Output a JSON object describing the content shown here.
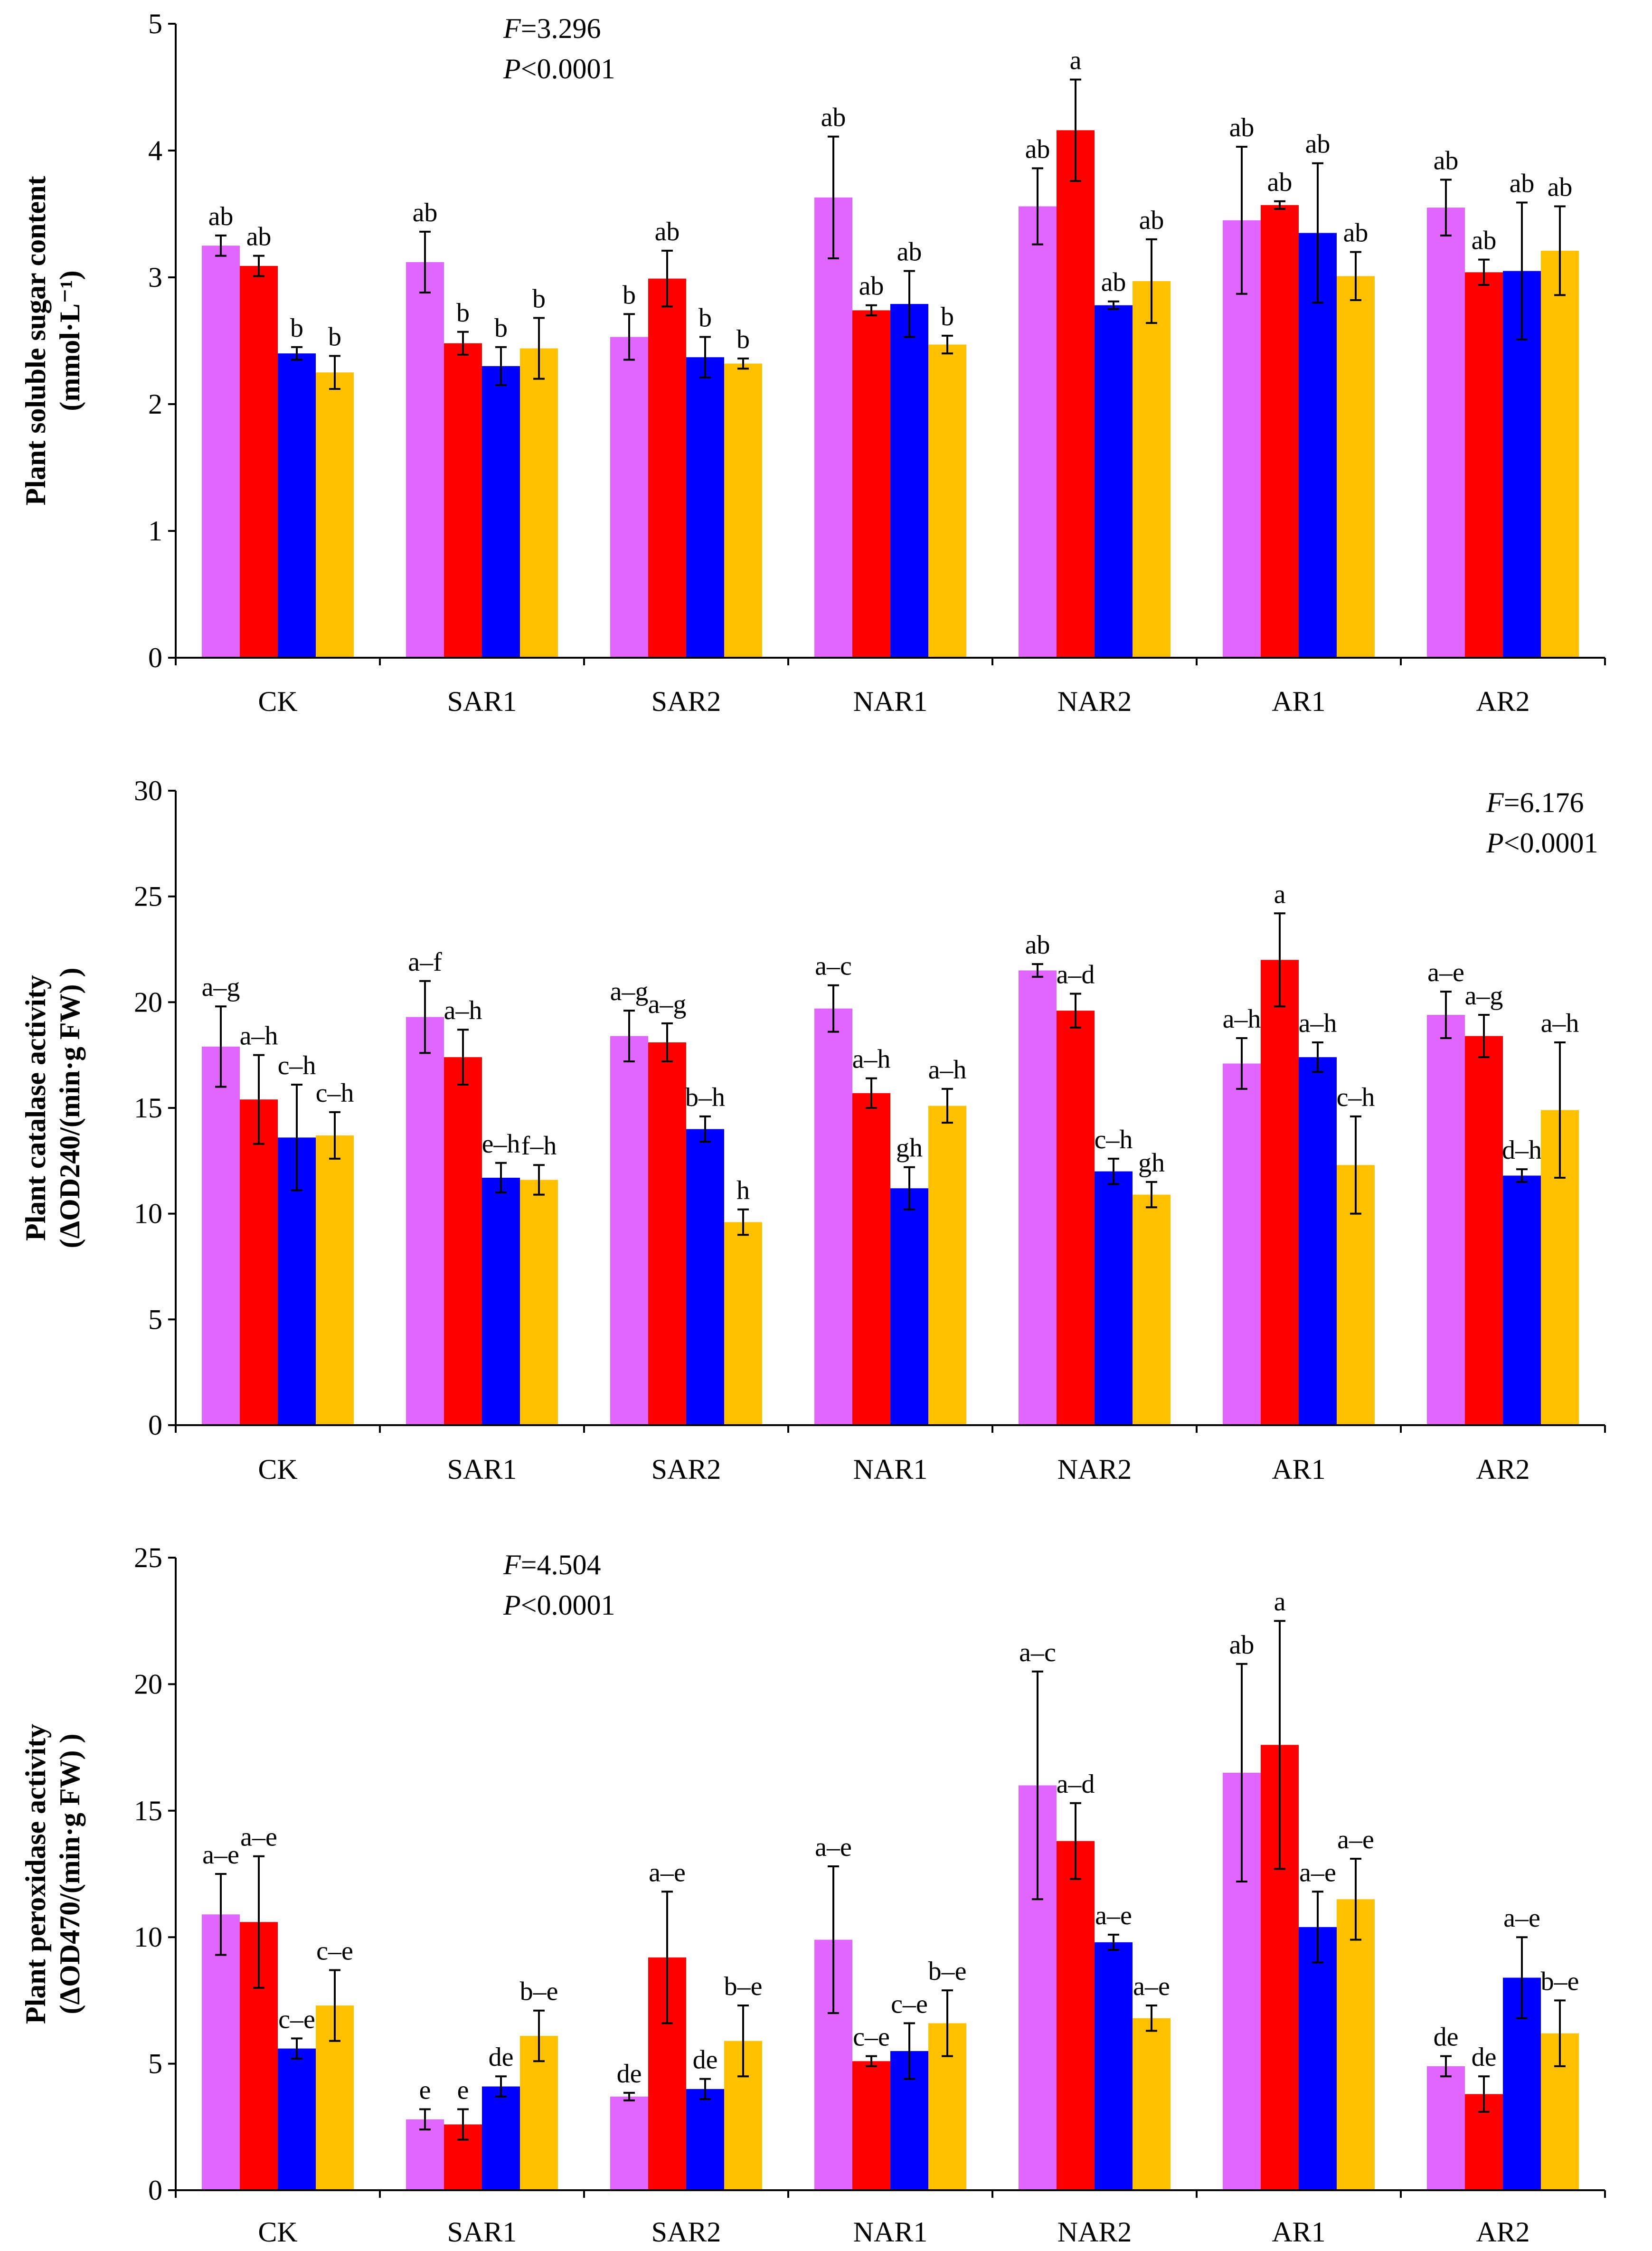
{
  "colors": [
    "#e066ff",
    "#ff0000",
    "#0000ff",
    "#ffc000"
  ],
  "chart_data": [
    {
      "type": "bar",
      "categories": [
        "CK",
        "SAR1",
        "SAR2",
        "NAR1",
        "NAR2",
        "AR1",
        "AR2"
      ],
      "ylabel": [
        "Plant soluble sugar content",
        "(mmol·L⁻¹)"
      ],
      "ylim": [
        0,
        5
      ],
      "ticks": [
        0,
        1,
        2,
        3,
        4,
        5
      ],
      "stat_f_prefix": "F",
      "stat_f_value": "=3.296",
      "stat_p_prefix": "P",
      "stat_p_value": "<0.0001",
      "series": [
        {
          "values": [
            3.25,
            3.12,
            2.53,
            3.63,
            3.56,
            3.45,
            3.55
          ],
          "errors": [
            0.08,
            0.24,
            0.18,
            0.48,
            0.3,
            0.58,
            0.22
          ],
          "labels": [
            "ab",
            "ab",
            "b",
            "ab",
            "ab",
            "ab",
            "ab"
          ]
        },
        {
          "values": [
            3.09,
            2.48,
            2.99,
            2.74,
            4.16,
            3.57,
            3.04
          ],
          "errors": [
            0.08,
            0.09,
            0.22,
            0.04,
            0.4,
            0.03,
            0.1
          ],
          "labels": [
            "ab",
            "b",
            "ab",
            "ab",
            "a",
            "ab",
            "ab"
          ]
        },
        {
          "values": [
            2.4,
            2.3,
            2.37,
            2.79,
            2.78,
            3.35,
            3.05
          ],
          "errors": [
            0.05,
            0.15,
            0.16,
            0.26,
            0.03,
            0.55,
            0.54
          ],
          "labels": [
            "b",
            "b",
            "b",
            "ab",
            "ab",
            "ab",
            "ab"
          ]
        },
        {
          "values": [
            2.25,
            2.44,
            2.32,
            2.47,
            2.97,
            3.01,
            3.21
          ],
          "errors": [
            0.13,
            0.24,
            0.04,
            0.07,
            0.33,
            0.19,
            0.35
          ],
          "labels": [
            "b",
            "b",
            "b",
            "b",
            "ab",
            "ab",
            "ab"
          ]
        }
      ]
    },
    {
      "type": "bar",
      "categories": [
        "CK",
        "SAR1",
        "SAR2",
        "NAR1",
        "NAR2",
        "AR1",
        "AR2"
      ],
      "ylabel": [
        "Plant catalase activity",
        "(ΔOD240/(min·g FW) )"
      ],
      "ylim": [
        0,
        30
      ],
      "ticks": [
        0,
        5,
        10,
        15,
        20,
        25,
        30
      ],
      "stat_f_prefix": "F",
      "stat_f_value": "=6.176",
      "stat_p_prefix": "P",
      "stat_p_value": "<0.0001",
      "series": [
        {
          "values": [
            17.9,
            19.3,
            18.4,
            19.7,
            21.5,
            17.1,
            19.4
          ],
          "errors": [
            1.9,
            1.7,
            1.2,
            1.1,
            0.3,
            1.2,
            1.1
          ],
          "labels": [
            "a–g",
            "a–f",
            "a–g",
            "a–c",
            "ab",
            "a–h",
            "a–e"
          ]
        },
        {
          "values": [
            15.4,
            17.4,
            18.1,
            15.7,
            19.6,
            22.0,
            18.4
          ],
          "errors": [
            2.1,
            1.3,
            0.9,
            0.7,
            0.8,
            2.2,
            1.0
          ],
          "labels": [
            "a–h",
            "a–h",
            "a–g",
            "a–h",
            "a–d",
            "a",
            "a–g"
          ]
        },
        {
          "values": [
            13.6,
            11.7,
            14.0,
            11.2,
            12.0,
            17.4,
            11.8
          ],
          "errors": [
            2.5,
            0.7,
            0.6,
            1.0,
            0.6,
            0.7,
            0.3
          ],
          "labels": [
            "c–h",
            "e–h",
            "b–h",
            "gh",
            "c–h",
            "a–h",
            "d–h"
          ]
        },
        {
          "values": [
            13.7,
            11.6,
            9.6,
            15.1,
            10.9,
            12.3,
            14.9
          ],
          "errors": [
            1.1,
            0.7,
            0.6,
            0.8,
            0.6,
            2.3,
            3.2
          ],
          "labels": [
            "c–h",
            "f–h",
            "h",
            "a–h",
            "gh",
            "c–h",
            "a–h"
          ]
        }
      ]
    },
    {
      "type": "bar",
      "categories": [
        "CK",
        "SAR1",
        "SAR2",
        "NAR1",
        "NAR2",
        "AR1",
        "AR2"
      ],
      "ylabel": [
        "Plant peroxidase activity",
        "(ΔOD470/(min·g FW) )"
      ],
      "ylim": [
        0,
        25
      ],
      "ticks": [
        0,
        5,
        10,
        15,
        20,
        25
      ],
      "stat_f_prefix": "F",
      "stat_f_value": "=4.504",
      "stat_p_prefix": "P",
      "stat_p_value": "<0.0001",
      "series": [
        {
          "values": [
            10.9,
            2.8,
            3.7,
            9.9,
            16.0,
            16.5,
            4.9
          ],
          "errors": [
            1.6,
            0.4,
            0.15,
            2.9,
            4.5,
            4.3,
            0.4
          ],
          "labels": [
            "a–e",
            "e",
            "de",
            "a–e",
            "a–c",
            "ab",
            "de"
          ]
        },
        {
          "values": [
            10.6,
            2.6,
            9.2,
            5.1,
            13.8,
            17.6,
            3.8
          ],
          "errors": [
            2.6,
            0.6,
            2.6,
            0.2,
            1.5,
            4.9,
            0.7
          ],
          "labels": [
            "a–e",
            "e",
            "a–e",
            "c–e",
            "a–d",
            "a",
            "de"
          ]
        },
        {
          "values": [
            5.6,
            4.1,
            4.0,
            5.5,
            9.8,
            10.4,
            8.4
          ],
          "errors": [
            0.4,
            0.4,
            0.4,
            1.1,
            0.3,
            1.4,
            1.6
          ],
          "labels": [
            "c–e",
            "de",
            "de",
            "c–e",
            "a–e",
            "a–e",
            "a–e"
          ]
        },
        {
          "values": [
            7.3,
            6.1,
            5.9,
            6.6,
            6.8,
            11.5,
            6.2
          ],
          "errors": [
            1.4,
            1.0,
            1.4,
            1.3,
            0.5,
            1.6,
            1.3
          ],
          "labels": [
            "c–e",
            "b–e",
            "b–e",
            "b–e",
            "a–e",
            "a–e",
            "b–e"
          ]
        }
      ]
    }
  ]
}
